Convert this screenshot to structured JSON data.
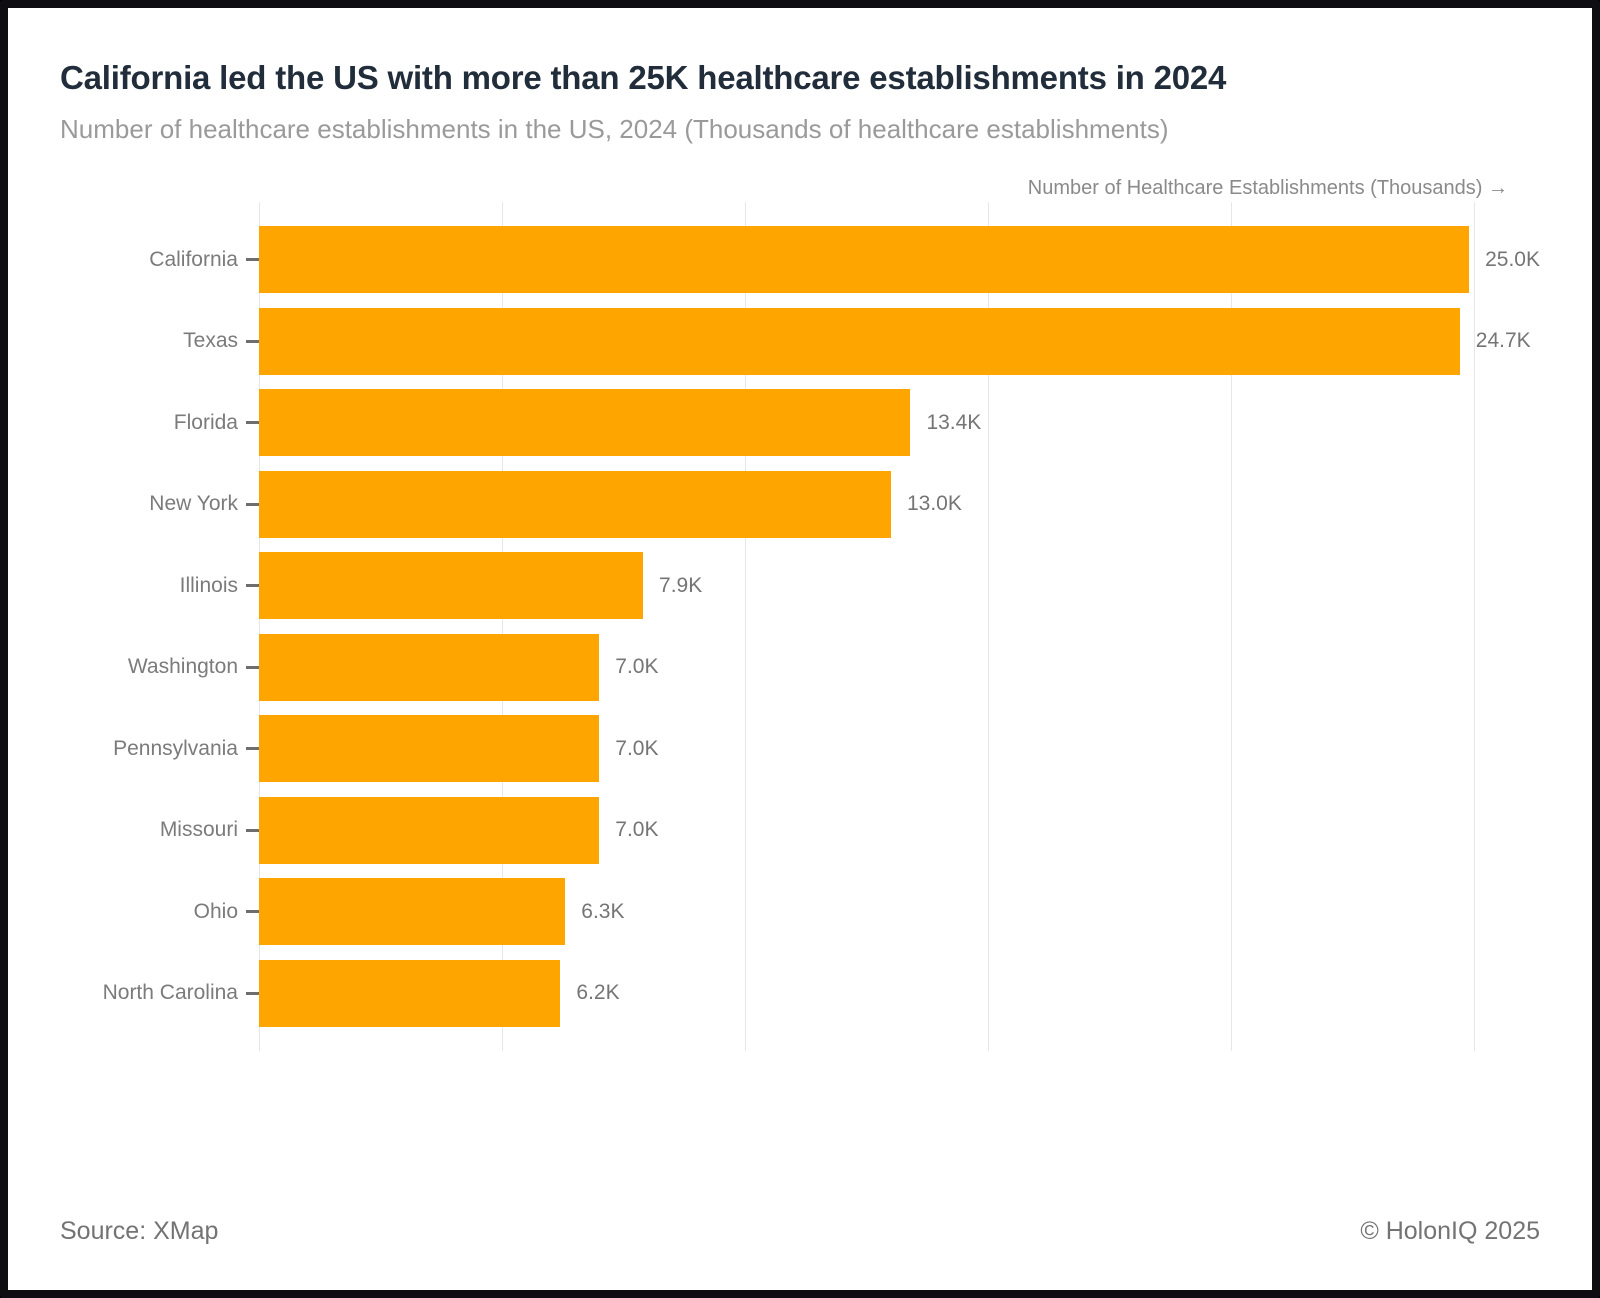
{
  "header": {
    "title": "California led the US with more than 25K healthcare establishments in 2024",
    "subtitle": "Number of healthcare establishments in the US, 2024 (Thousands of healthcare establishments)"
  },
  "chart_data": {
    "type": "bar",
    "orientation": "horizontal",
    "title": "California led the US with more than 25K healthcare establishments in 2024",
    "xlabel": "Number of Healthcare Establishments (Thousands)",
    "axis_title": "Number of Healthcare Establishments (Thousands) →",
    "categories": [
      "California",
      "Texas",
      "Florida",
      "New York",
      "Illinois",
      "Washington",
      "Pennsylvania",
      "Missouri",
      "Ohio",
      "North Carolina"
    ],
    "values": [
      25.0,
      24.7,
      13.4,
      13.0,
      7.9,
      7.0,
      7.0,
      7.0,
      6.3,
      6.2
    ],
    "value_labels": [
      "25.0K",
      "24.7K",
      "13.4K",
      "13.0K",
      "7.9K",
      "7.0K",
      "7.0K",
      "7.0K",
      "6.3K",
      "6.2K"
    ],
    "xlim": [
      0,
      26.35
    ],
    "grid_values": [
      0,
      5,
      10,
      15,
      20,
      25
    ],
    "grid_on": true,
    "legend": "none",
    "bar_color": "#FFA500",
    "grid_color": "#e7e7e7"
  },
  "footer": {
    "source": "Source: XMap",
    "copyright": "© HolonIQ 2025"
  }
}
